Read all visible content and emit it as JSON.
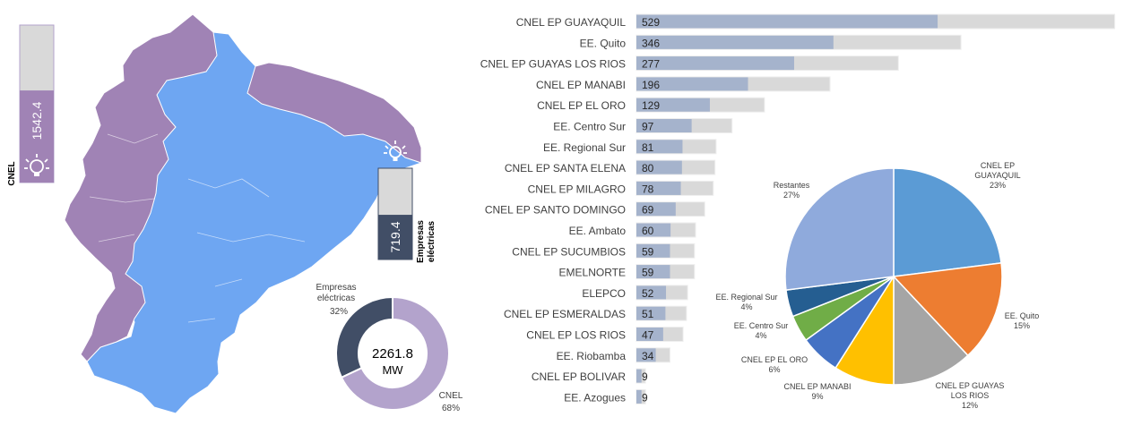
{
  "colors": {
    "cnel": "#a083b5",
    "empresas": "#6ea6f2",
    "navy": "#414e66",
    "light_purple": "#b3a3cc",
    "bar_fill": "#a5b3cc",
    "bar_track": "#d9d9d9",
    "pie": [
      "#5b9bd5",
      "#ed7d31",
      "#a5a5a5",
      "#ffc000",
      "#4472c4",
      "#70ad47",
      "#255e91",
      "#8faadc"
    ]
  },
  "gauges": {
    "cnel": {
      "value": "1542.4",
      "label": "CNEL",
      "icon": "lightbulb-icon",
      "fill_fraction": 0.68
    },
    "empresas": {
      "value": "719.4",
      "label_line1": "Empresas",
      "label_line2": "eléctricas",
      "icon": "lightbulb-icon",
      "fill_fraction": 0.32
    }
  },
  "donut": {
    "center_value": "2261.8",
    "center_unit": "MW",
    "segments": [
      {
        "label_line1": "Empresas",
        "label_line2": "eléctricas",
        "pct_label": "32%",
        "value": 32
      },
      {
        "label_line1": "CNEL",
        "label_line2": "",
        "pct_label": "68%",
        "value": 68
      }
    ]
  },
  "chart_data": [
    {
      "type": "bar",
      "orientation": "horizontal",
      "categories": [
        "CNEL EP GUAYAQUIL",
        "EE. Quito",
        "CNEL EP GUAYAS LOS RIOS",
        "CNEL EP MANABI",
        "CNEL EP EL ORO",
        "EE. Centro Sur",
        "EE. Regional Sur",
        "CNEL EP SANTA ELENA",
        "CNEL EP MILAGRO",
        "CNEL EP SANTO DOMINGO",
        "EE. Ambato",
        "CNEL EP SUCUMBIOS",
        "EMELNORTE",
        "ELEPCO",
        "CNEL EP ESMERALDAS",
        "CNEL EP LOS RIOS",
        "EE. Riobamba",
        "CNEL EP BOLIVAR",
        "EE. Azogues"
      ],
      "values": [
        529,
        346,
        277,
        196,
        129,
        97,
        81,
        80,
        78,
        69,
        60,
        59,
        59,
        52,
        51,
        47,
        34,
        9,
        9
      ],
      "value_labels": [
        "529",
        "346",
        "277",
        "196",
        "129",
        "97",
        "81",
        "80",
        "78",
        "69",
        "60",
        "59",
        "59",
        "52",
        "51",
        "47",
        "34",
        "9",
        "9"
      ],
      "track_values": [
        840,
        570,
        460,
        340,
        225,
        168,
        140,
        138,
        135,
        120,
        104,
        102,
        102,
        90,
        88,
        82,
        59,
        16,
        16
      ],
      "xlim": [
        0,
        850
      ]
    },
    {
      "type": "pie",
      "slices": [
        {
          "label": "CNEL EP\nGUAYAQUIL",
          "pct_label": "23%",
          "value": 23
        },
        {
          "label": "EE. Quito",
          "pct_label": "15%",
          "value": 15
        },
        {
          "label": "CNEL EP GUAYAS\nLOS RIOS",
          "pct_label": "12%",
          "value": 12
        },
        {
          "label": "CNEL EP MANABI",
          "pct_label": "9%",
          "value": 9
        },
        {
          "label": "CNEL EP EL ORO",
          "pct_label": "6%",
          "value": 6
        },
        {
          "label": "EE. Centro Sur",
          "pct_label": "4%",
          "value": 4
        },
        {
          "label": "EE. Regional Sur",
          "pct_label": "4%",
          "value": 4
        },
        {
          "label": "Restantes",
          "pct_label": "27%",
          "value": 27
        }
      ]
    }
  ]
}
